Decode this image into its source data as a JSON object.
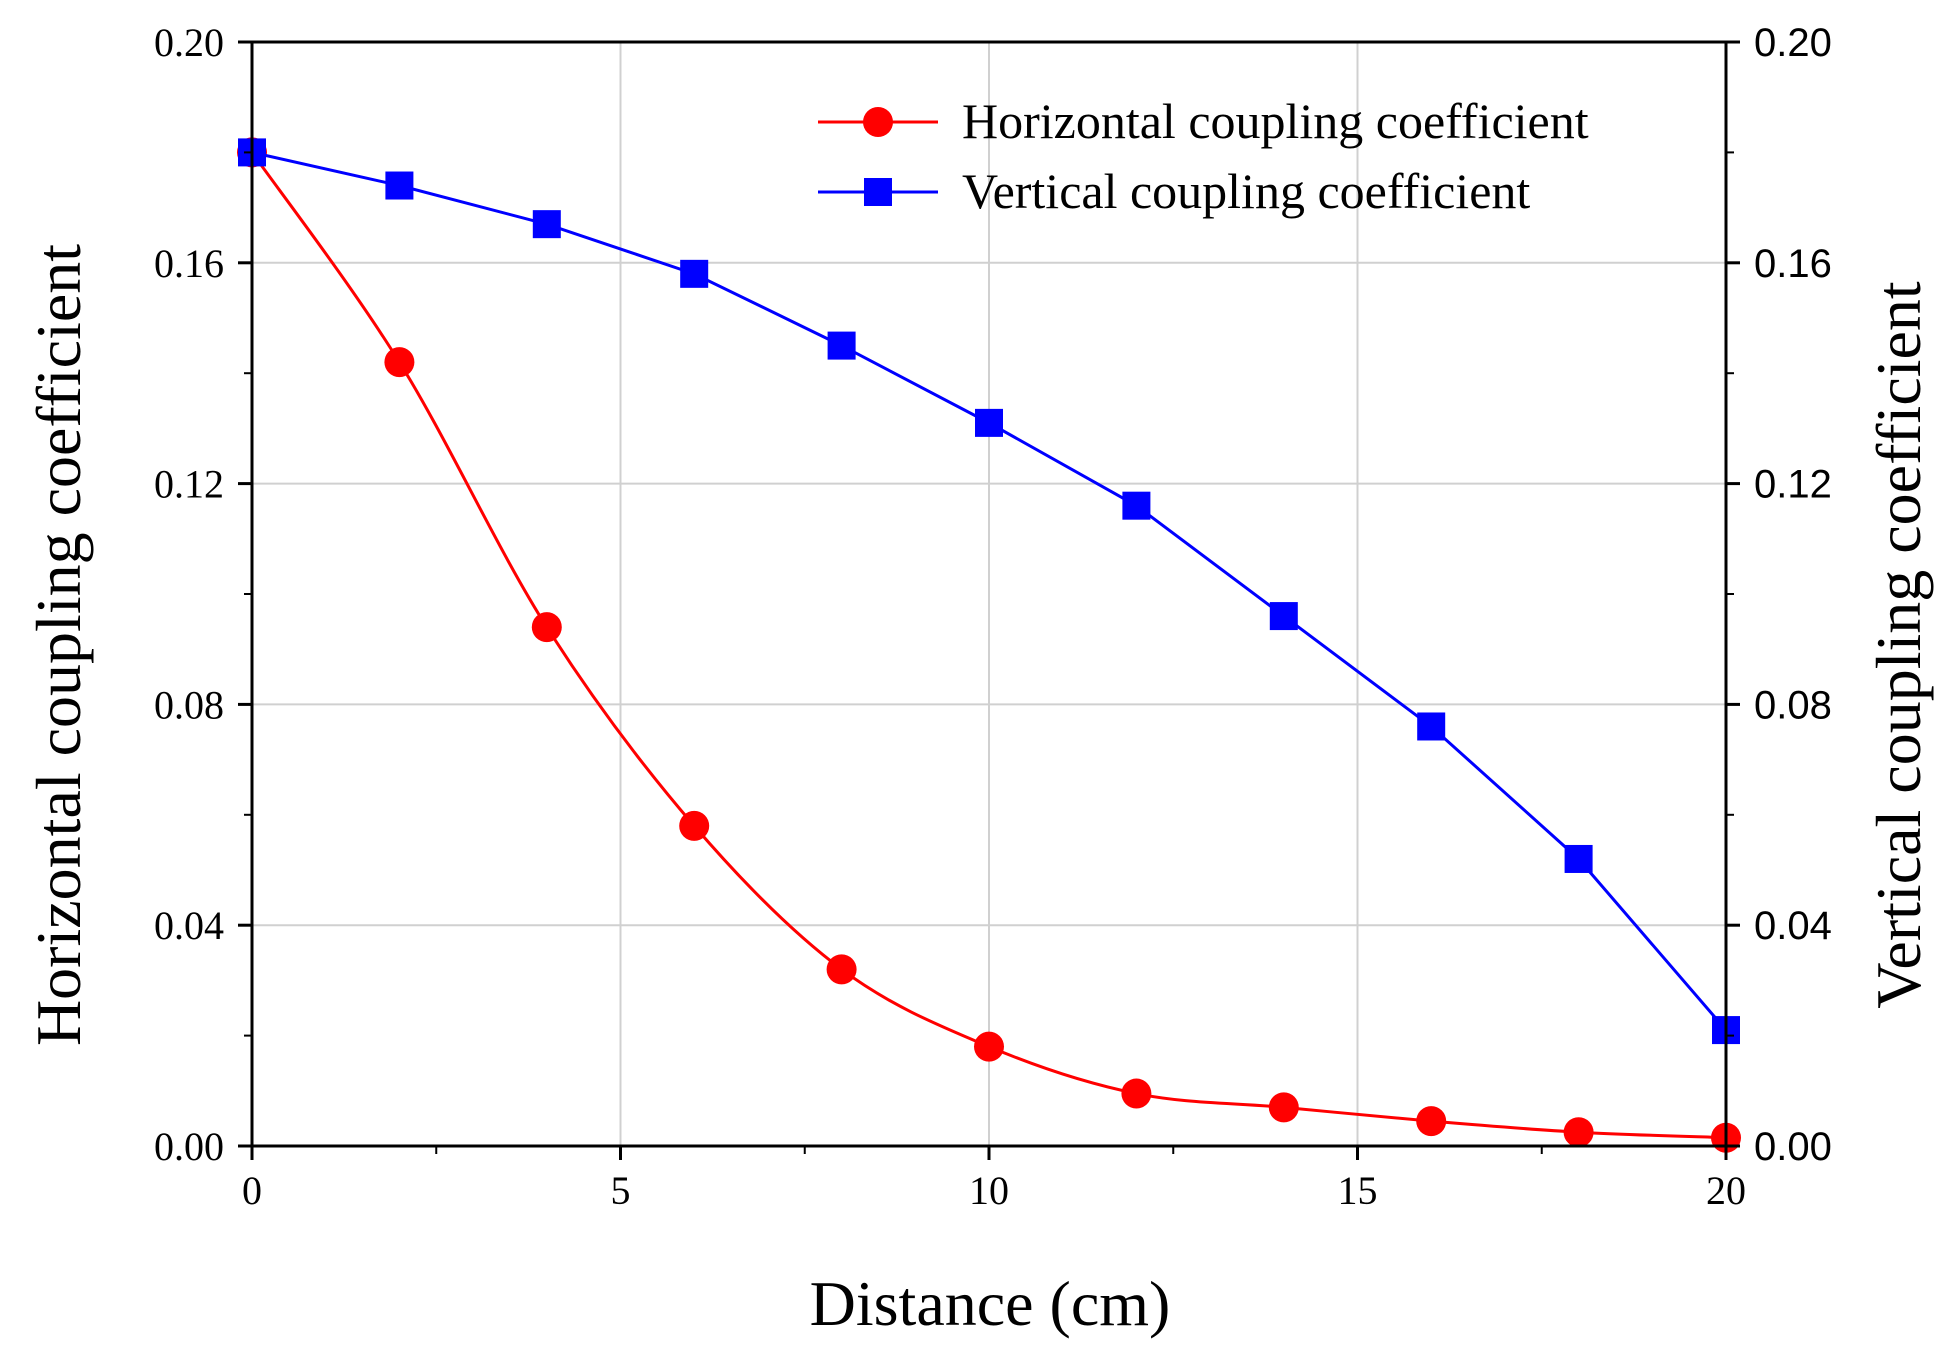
{
  "chart_data": {
    "type": "line",
    "xlabel": "Distance (cm)",
    "ylabel_left": "Horizontal coupling coefficient",
    "ylabel_right": "Vertical coupling coefficient",
    "xlim": [
      0,
      20
    ],
    "ylim": [
      0,
      0.2
    ],
    "x_ticks": [
      {
        "value": 0,
        "label": "0"
      },
      {
        "value": 5,
        "label": "5"
      },
      {
        "value": 10,
        "label": "10"
      },
      {
        "value": 15,
        "label": "15"
      },
      {
        "value": 20,
        "label": "20"
      }
    ],
    "y_ticks": [
      {
        "value": 0,
        "label": "0.00"
      },
      {
        "value": 0.04,
        "label": "0.04"
      },
      {
        "value": 0.08,
        "label": "0.08"
      },
      {
        "value": 0.12,
        "label": "0.12"
      },
      {
        "value": 0.16,
        "label": "0.16"
      },
      {
        "value": 0.2,
        "label": "0.20"
      }
    ],
    "grid": true,
    "legend_position": "top-right",
    "x": [
      0,
      2,
      4,
      6,
      8,
      10,
      12,
      14,
      16,
      18,
      20
    ],
    "series": [
      {
        "name": "Horizontal coupling coefficient",
        "axis": "left",
        "color": "#ff0000",
        "marker": "circle",
        "smooth": true,
        "values": [
          0.18,
          0.142,
          0.094,
          0.058,
          0.032,
          0.018,
          0.0095,
          0.007,
          0.0045,
          0.0025,
          0.0015
        ]
      },
      {
        "name": "Vertical coupling coefficient",
        "axis": "right",
        "color": "#0000ff",
        "marker": "square",
        "smooth": false,
        "values": [
          0.18,
          0.174,
          0.167,
          0.158,
          0.145,
          0.131,
          0.116,
          0.096,
          0.076,
          0.052,
          0.021
        ]
      }
    ]
  }
}
